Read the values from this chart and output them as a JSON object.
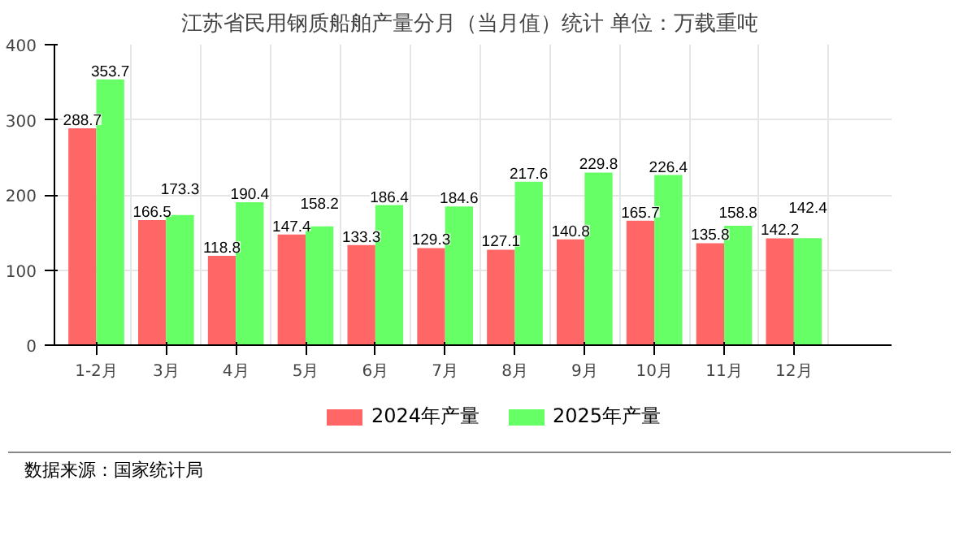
{
  "chart_data": {
    "type": "bar",
    "title": "江苏省民用钢质船舶产量分月（当月值）统计  单位：万载重吨",
    "categories": [
      "1-2月",
      "3月",
      "4月",
      "5月",
      "6月",
      "7月",
      "8月",
      "9月",
      "10月",
      "11月",
      "12月"
    ],
    "series": [
      {
        "name": "2024年产量",
        "color": "#ff6666",
        "values": [
          288.7,
          166.5,
          118.8,
          147.4,
          133.3,
          129.3,
          127.1,
          140.8,
          165.7,
          135.8,
          142.2
        ]
      },
      {
        "name": "2025年产量",
        "color": "#66ff66",
        "values": [
          353.7,
          173.3,
          190.4,
          158.2,
          186.4,
          184.6,
          217.6,
          229.8,
          226.4,
          158.8,
          142.4
        ]
      }
    ],
    "ylim": [
      0,
      400
    ],
    "yticks": [
      0,
      100,
      200,
      300,
      400
    ],
    "grid": true,
    "legend": "bottom",
    "data_labels": true,
    "annotations": [
      "数据来源：国家统计局"
    ]
  }
}
